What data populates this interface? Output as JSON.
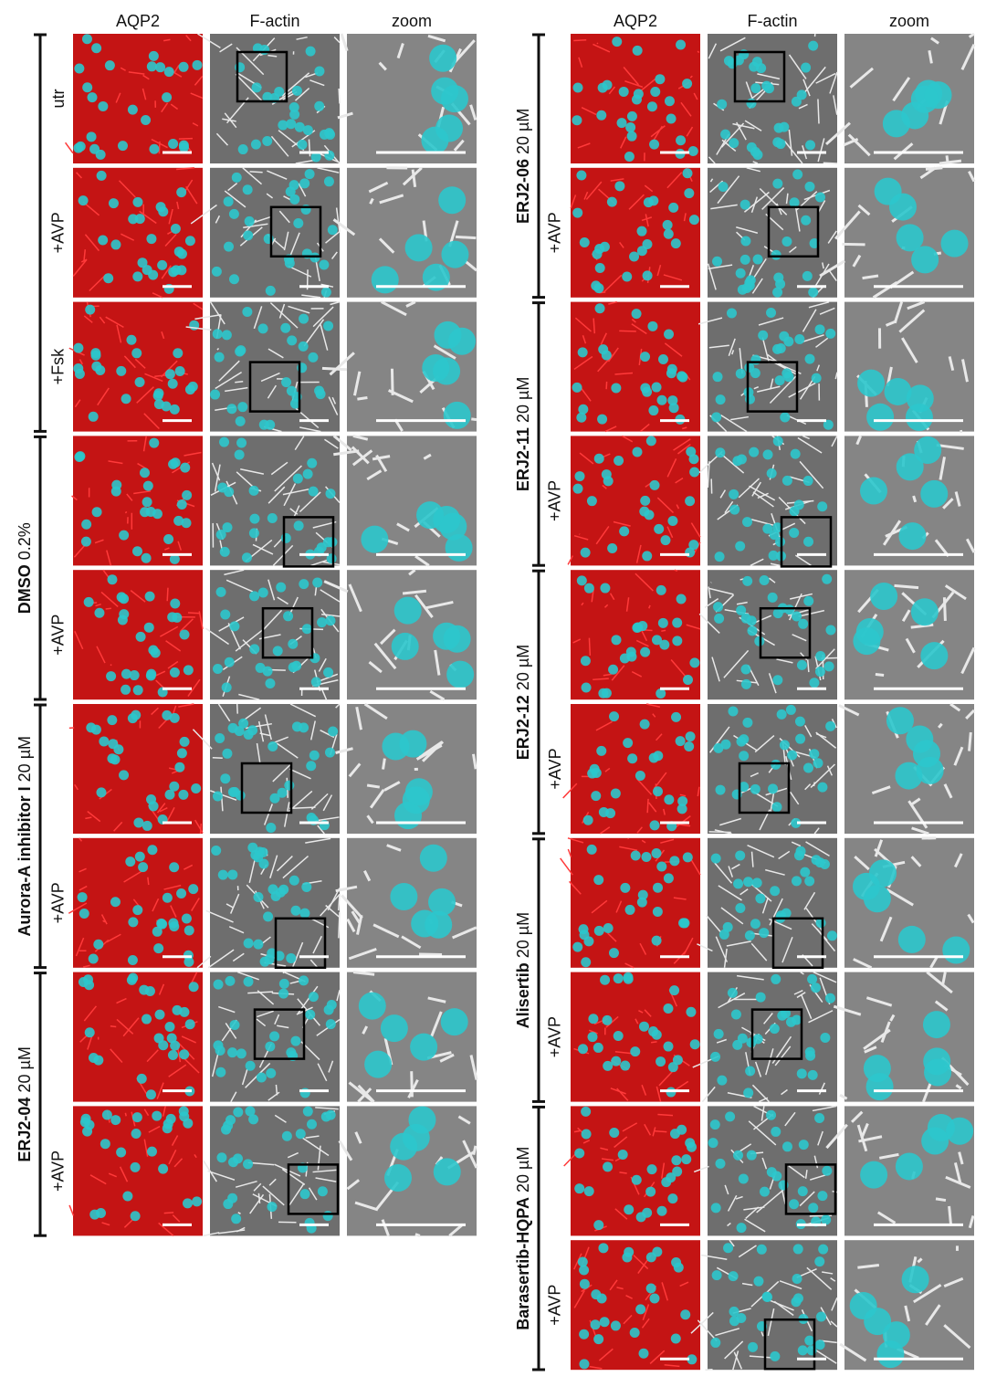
{
  "left": {
    "headers": [
      "AQP2",
      "F-actin",
      "zoom"
    ],
    "groups": [
      {
        "rows": [
          "utr",
          "+AVP",
          "+Fsk"
        ]
      },
      {
        "name": "DMSO",
        "dose": "0.2%",
        "rows": [
          null,
          "+AVP"
        ]
      },
      {
        "name": "Aurora-A inhibitor I",
        "dose": "20 µM",
        "rows": [
          null,
          "+AVP"
        ]
      },
      {
        "name": "ERJ2-04",
        "dose": "20 µM",
        "rows": [
          null,
          "+AVP"
        ]
      }
    ]
  },
  "right": {
    "headers": [
      "AQP2",
      "F-actin",
      "zoom"
    ],
    "groups": [
      {
        "name": "ERJ2-06",
        "dose": "20 µM",
        "rows": [
          null,
          "+AVP"
        ]
      },
      {
        "name": "ERJ2-11",
        "dose": "20 µM",
        "rows": [
          null,
          "+AVP"
        ]
      },
      {
        "name": "ERJ2-12",
        "dose": "20 µM",
        "rows": [
          null,
          "+AVP"
        ]
      },
      {
        "name": "Alisertib",
        "dose": "20 µM",
        "rows": [
          null,
          "+AVP"
        ]
      },
      {
        "name": "Barasertib-HQPA",
        "dose": "20 µM",
        "rows": [
          null,
          "+AVP"
        ]
      }
    ]
  }
}
